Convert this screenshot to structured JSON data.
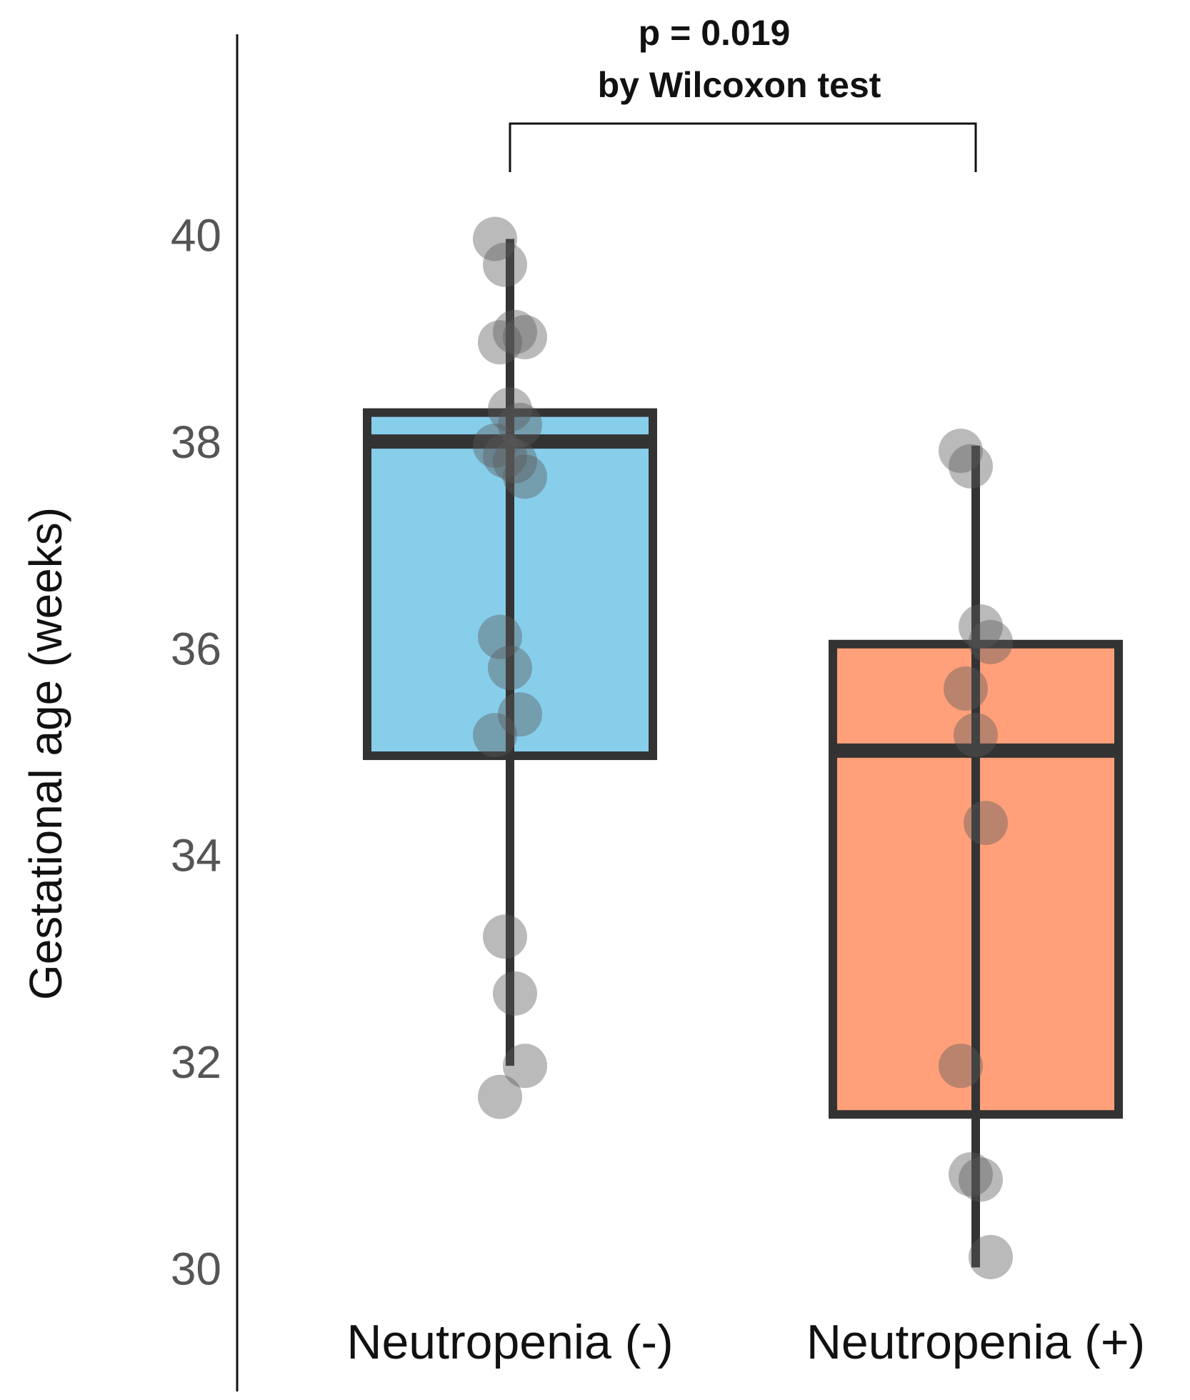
{
  "chart_data": {
    "type": "box",
    "y_label": "Gestational age (weeks)",
    "annotations": [
      "p = 0.019",
      "by Wilcoxon test"
    ],
    "categories": [
      "Neutropenia (-)",
      "Neutropenia (+)"
    ],
    "ylim": [
      28.85,
      41.98
    ],
    "yticks": [
      30,
      32,
      34,
      36,
      38,
      40
    ],
    "series": [
      {
        "color": "#87ceeb",
        "min": 32.0,
        "q1": 35.0,
        "median": 38.04,
        "q3": 38.32,
        "max": 40.0,
        "points": [
          40.0,
          39.75,
          39.1,
          39.05,
          39.0,
          38.35,
          38.2,
          38.0,
          37.9,
          37.85,
          37.7,
          36.15,
          35.85,
          35.4,
          35.2,
          33.25,
          32.7,
          32.0,
          31.7
        ]
      },
      {
        "color": "#ffa07a",
        "min": 30.05,
        "q1": 31.53,
        "median": 35.05,
        "q3": 36.08,
        "max": 38.0,
        "points": [
          37.95,
          37.8,
          36.25,
          36.1,
          35.65,
          35.2,
          34.35,
          32.0,
          30.95,
          30.9,
          30.15
        ]
      }
    ]
  }
}
